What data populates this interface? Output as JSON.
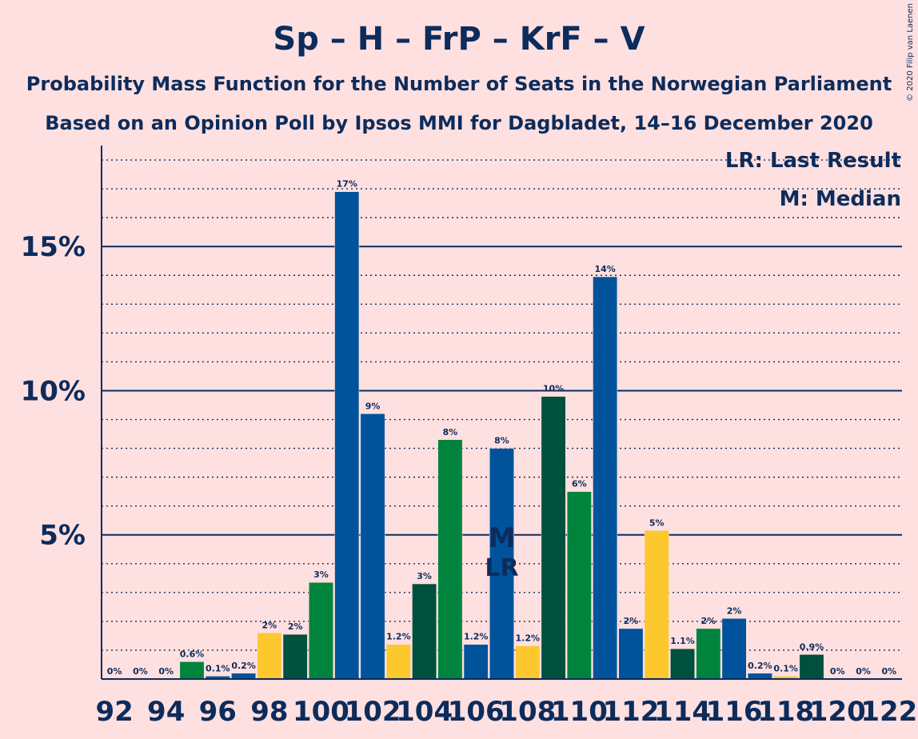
{
  "header": {
    "title": "Sp – H – FrP – KrF – V",
    "subtitle1": "Probability Mass Function for the Number of Seats in the Norwegian Parliament",
    "subtitle2": "Based on an Opinion Poll by Ipsos MMI for Dagbladet, 14–16 December 2020",
    "copyright": "© 2020 Filip van Laenen"
  },
  "legend": {
    "lr": "LR: Last Result",
    "m": "M: Median"
  },
  "markers": {
    "median_label": "M",
    "last_result_label": "LR",
    "median_seat": 107,
    "last_result_seat": 107
  },
  "colors": {
    "background": "#FFE0E0",
    "text": "#0C2C5C",
    "axis": "#0C2C5C"
  },
  "chart_data": {
    "type": "bar",
    "x": [
      92,
      93,
      94,
      95,
      96,
      97,
      98,
      99,
      100,
      101,
      102,
      103,
      104,
      105,
      106,
      107,
      108,
      109,
      110,
      111,
      112,
      113,
      114,
      115,
      116,
      117,
      118,
      119,
      120,
      121,
      122
    ],
    "values": [
      0,
      0,
      0,
      0.6,
      0.1,
      0.2,
      1.6,
      1.55,
      3.35,
      16.9,
      9.2,
      1.2,
      3.3,
      8.3,
      1.2,
      8.0,
      1.15,
      9.8,
      6.5,
      13.95,
      1.75,
      5.15,
      1.05,
      1.75,
      2.1,
      0.2,
      0.1,
      0.85,
      0,
      0,
      0
    ],
    "labels": [
      "0%",
      "0%",
      "0%",
      "0.6%",
      "0.1%",
      "0.2%",
      "2%",
      "2%",
      "3%",
      "17%",
      "9%",
      "1.2%",
      "3%",
      "8%",
      "1.2%",
      "8%",
      "1.2%",
      "10%",
      "6%",
      "14%",
      "2%",
      "5%",
      "1.1%",
      "2%",
      "2%",
      "0.2%",
      "0.1%",
      "0.9%",
      "0%",
      "0%",
      "0%"
    ],
    "bar_colors": [
      "#00843D",
      "#00843D",
      "#00843D",
      "#00843D",
      "#00539B",
      "#00539B",
      "#FDC72E",
      "#00503E",
      "#00843D",
      "#00539B",
      "#00539B",
      "#FDC72E",
      "#00503E",
      "#00843D",
      "#00539B",
      "#00539B",
      "#FDC72E",
      "#00503E",
      "#00843D",
      "#00539B",
      "#00539B",
      "#FDC72E",
      "#00503E",
      "#00843D",
      "#00539B",
      "#00539B",
      "#FDC72E",
      "#00503E",
      "#00843D",
      "#00539B",
      "#00539B"
    ],
    "x_tick_labels": [
      "92",
      "94",
      "96",
      "98",
      "100",
      "102",
      "104",
      "106",
      "108",
      "110",
      "112",
      "114",
      "116",
      "118",
      "120",
      "122"
    ],
    "y_ticks": [
      {
        "value": 5,
        "label": "5%"
      },
      {
        "value": 10,
        "label": "10%"
      },
      {
        "value": 15,
        "label": "15%"
      }
    ],
    "ylim": [
      0,
      18.5
    ],
    "grid": "dotted minor lines every 1%, solid major lines every 5%",
    "legend_position": "top-right"
  }
}
